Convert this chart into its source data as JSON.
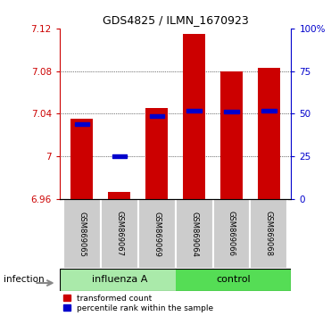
{
  "title": "GDS4825 / ILMN_1670923",
  "samples": [
    "GSM869065",
    "GSM869067",
    "GSM869069",
    "GSM869064",
    "GSM869066",
    "GSM869068"
  ],
  "group_labels": [
    "influenza A",
    "control"
  ],
  "group_split": 3,
  "bar_bottom": 6.96,
  "bar_tops": [
    7.035,
    6.967,
    7.045,
    7.115,
    7.08,
    7.083
  ],
  "percentile_values": [
    7.03,
    7.0,
    7.038,
    7.043,
    7.042,
    7.043
  ],
  "ylim_left": [
    6.96,
    7.12
  ],
  "yticks_left": [
    6.96,
    7.0,
    7.04,
    7.08,
    7.12
  ],
  "ytick_labels_left": [
    "6.96",
    "7",
    "7.04",
    "7.08",
    "7.12"
  ],
  "ylim_right": [
    0,
    100
  ],
  "yticks_right": [
    0,
    25,
    50,
    75,
    100
  ],
  "ytick_labels_right": [
    "0",
    "25",
    "50",
    "75",
    "100%"
  ],
  "grid_yticks": [
    7.0,
    7.04,
    7.08
  ],
  "bar_color": "#cc0000",
  "percentile_color": "#0000cc",
  "background_color": "#ffffff",
  "label_color_left": "#cc0000",
  "label_color_right": "#0000cc",
  "infection_label": "infection",
  "legend_bar_label": "transformed count",
  "legend_pct_label": "percentile rank within the sample",
  "bar_width": 0.6,
  "sample_box_color": "#cccccc",
  "group_color_influenza": "#aaeaaa",
  "group_color_control": "#55dd55",
  "x_positions": [
    0,
    1,
    2,
    3,
    4,
    5
  ]
}
